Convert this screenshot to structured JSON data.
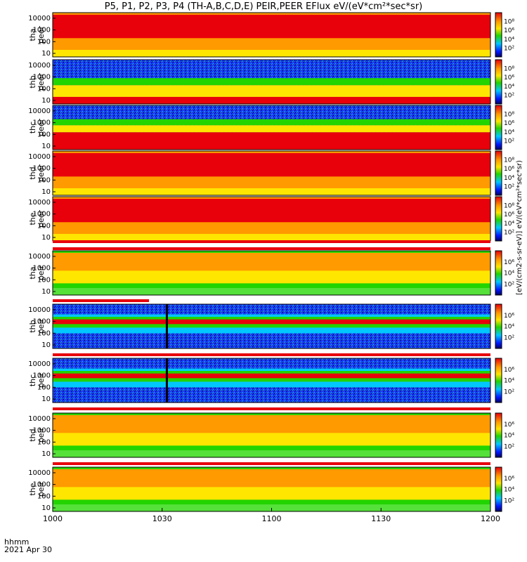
{
  "title": "P5, P1, P2, P3, P4 (TH-A,B,C,D,E) PEIR,PEER EFlux eV/(eV*cm²*sec*sr)",
  "corner_labels": {
    "line1": "hhmm",
    "line2": "2021 Apr 30"
  },
  "colorbar_unit": "[eV/(cm2-s-sr-eV)] eV/(eV*cm²*sec*sr)",
  "colors": {
    "red": "#e8000b",
    "orange": "#ff9a00",
    "yellow": "#ffe600",
    "green": "#22d400",
    "cyan": "#00c8ff",
    "blue": "#0018ff",
    "darkblue": "#000060"
  },
  "chart_data": {
    "type": "heatmap",
    "x_axis": {
      "ticks": [
        "1000",
        "1030",
        "1100",
        "1130",
        "1200"
      ],
      "range": [
        "10:00",
        "12:00"
      ]
    },
    "y_axis": {
      "scale": "log",
      "ticks": [
        "10",
        "100",
        "1000",
        "10000"
      ],
      "range": [
        5,
        30000
      ]
    },
    "colorbar": {
      "scale": "log",
      "peer_ticks": [
        "10²",
        "10⁴",
        "10⁶",
        "10⁸"
      ],
      "peir_ticks": [
        "10²",
        "10⁴",
        "10⁶"
      ]
    },
    "panels": [
      {
        "probe": "tha",
        "species": "peer",
        "dominant": "red",
        "low_band": "orange"
      },
      {
        "probe": "thb",
        "species": "peer",
        "dominant": "red/yellow bands",
        "high_band": "blue noise"
      },
      {
        "probe": "thc",
        "species": "peer",
        "dominant": "red band low",
        "high_band": "blue noise"
      },
      {
        "probe": "thd",
        "species": "peer",
        "dominant": "red",
        "low_band": "orange"
      },
      {
        "probe": "the",
        "species": "peer",
        "dominant": "red",
        "low_band": "orange"
      },
      {
        "probe": "tha",
        "species": "peir",
        "dominant": "orange/yellow",
        "low_band": "green"
      },
      {
        "probe": "thb",
        "species": "peir",
        "dominant": "red band ~1000 eV",
        "high_band": "blue",
        "gap_at": "1031"
      },
      {
        "probe": "thc",
        "species": "peir",
        "dominant": "red band ~1000 eV",
        "high_band": "blue",
        "gap_at": "1031"
      },
      {
        "probe": "thd",
        "species": "peir",
        "dominant": "orange/yellow",
        "low_band": "green"
      },
      {
        "probe": "the",
        "species": "peir",
        "dominant": "orange/yellow",
        "low_band": "green"
      }
    ]
  }
}
